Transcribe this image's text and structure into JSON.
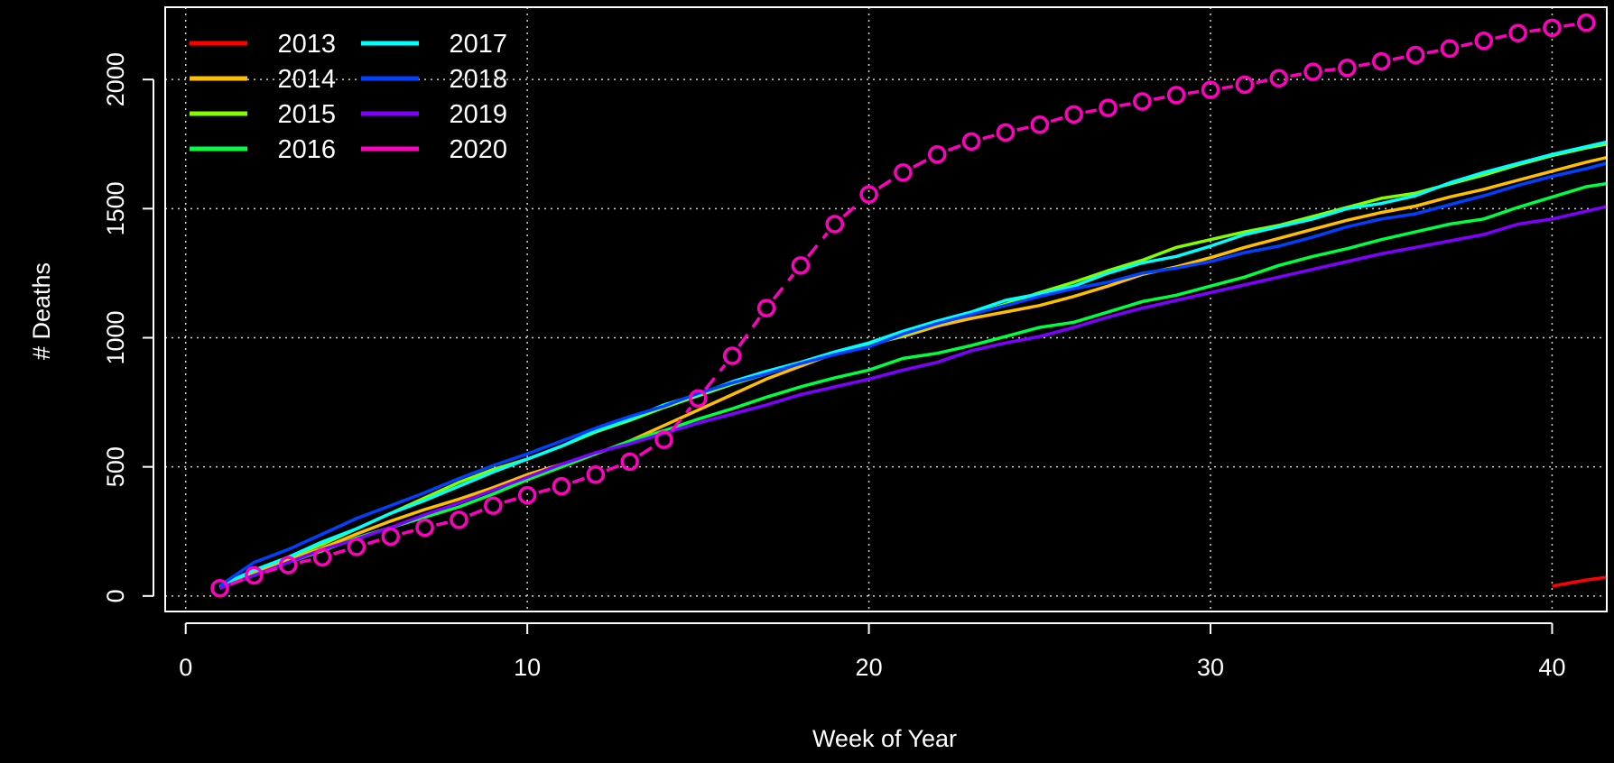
{
  "chart_data": {
    "type": "line",
    "xlabel": "Week of Year",
    "ylabel": "# Deaths",
    "xlim": [
      -0.6,
      41.6
    ],
    "ylim": [
      -60,
      2280
    ],
    "x_ticks": [
      0,
      10,
      20,
      30,
      40
    ],
    "y_ticks": [
      0,
      500,
      1000,
      1500,
      2000
    ],
    "grid": true,
    "legend_position": "top-left",
    "series": [
      {
        "name": "2013",
        "color": "#ff0000",
        "style": "line",
        "x": [
          40,
          41,
          42
        ],
        "y": [
          38,
          62,
          80
        ]
      },
      {
        "name": "2014",
        "color": "#ffbf00",
        "style": "line",
        "x": [
          1,
          2,
          3,
          4,
          5,
          6,
          7,
          8,
          9,
          10,
          11,
          12,
          13,
          14,
          15,
          16,
          17,
          18,
          19,
          20,
          21,
          22,
          23,
          24,
          25,
          26,
          27,
          28,
          29,
          30,
          31,
          32,
          33,
          34,
          35,
          36,
          37,
          38,
          39,
          40,
          41,
          42
        ],
        "y": [
          30,
          90,
          140,
          185,
          240,
          290,
          335,
          375,
          420,
          470,
          510,
          550,
          600,
          660,
          720,
          780,
          840,
          890,
          940,
          975,
          1005,
          1045,
          1075,
          1100,
          1125,
          1160,
          1200,
          1245,
          1275,
          1310,
          1350,
          1385,
          1420,
          1455,
          1485,
          1510,
          1545,
          1575,
          1610,
          1645,
          1680,
          1710
        ]
      },
      {
        "name": "2015",
        "color": "#80ff00",
        "style": "line",
        "x": [
          1,
          2,
          3,
          4,
          5,
          6,
          7,
          8,
          9,
          10,
          11,
          12,
          13,
          14,
          15,
          16,
          17,
          18,
          19,
          20,
          21,
          22,
          23,
          24,
          25,
          26,
          27,
          28,
          29,
          30,
          31,
          32,
          33,
          34,
          35,
          36,
          37,
          38,
          39,
          40,
          41,
          42
        ],
        "y": [
          35,
          100,
          150,
          200,
          260,
          320,
          380,
          440,
          490,
          530,
          580,
          635,
          680,
          730,
          775,
          820,
          860,
          900,
          940,
          970,
          1010,
          1055,
          1090,
          1130,
          1175,
          1215,
          1260,
          1300,
          1350,
          1380,
          1410,
          1435,
          1470,
          1505,
          1540,
          1560,
          1595,
          1630,
          1670,
          1705,
          1735,
          1760
        ]
      },
      {
        "name": "2016",
        "color": "#00ff40",
        "style": "line",
        "x": [
          1,
          2,
          3,
          4,
          5,
          6,
          7,
          8,
          9,
          10,
          11,
          12,
          13,
          14,
          15,
          16,
          17,
          18,
          19,
          20,
          21,
          22,
          23,
          24,
          25,
          26,
          27,
          28,
          29,
          30,
          31,
          32,
          33,
          34,
          35,
          36,
          37,
          38,
          39,
          40,
          41,
          42
        ],
        "y": [
          30,
          80,
          130,
          175,
          225,
          265,
          305,
          345,
          395,
          450,
          500,
          550,
          600,
          640,
          685,
          725,
          770,
          810,
          845,
          875,
          920,
          940,
          970,
          1005,
          1040,
          1060,
          1100,
          1140,
          1165,
          1200,
          1235,
          1280,
          1315,
          1345,
          1380,
          1410,
          1440,
          1460,
          1505,
          1545,
          1585,
          1605
        ]
      },
      {
        "name": "2017",
        "color": "#00ffff",
        "style": "line",
        "x": [
          1,
          2,
          3,
          4,
          5,
          6,
          7,
          8,
          9,
          10,
          11,
          12,
          13,
          14,
          15,
          16,
          17,
          18,
          19,
          20,
          21,
          22,
          23,
          24,
          25,
          26,
          27,
          28,
          29,
          30,
          31,
          32,
          33,
          34,
          35,
          36,
          37,
          38,
          39,
          40,
          41,
          42
        ],
        "y": [
          40,
          100,
          150,
          210,
          260,
          320,
          370,
          425,
          480,
          530,
          580,
          640,
          685,
          740,
          780,
          830,
          870,
          905,
          945,
          980,
          1025,
          1065,
          1100,
          1145,
          1170,
          1200,
          1250,
          1290,
          1315,
          1355,
          1400,
          1430,
          1460,
          1500,
          1520,
          1550,
          1600,
          1640,
          1675,
          1710,
          1740,
          1770
        ]
      },
      {
        "name": "2018",
        "color": "#0040ff",
        "style": "line",
        "x": [
          1,
          2,
          3,
          4,
          5,
          6,
          7,
          8,
          9,
          10,
          11,
          12,
          13,
          14,
          15,
          16,
          17,
          18,
          19,
          20,
          21,
          22,
          23,
          24,
          25,
          26,
          27,
          28,
          29,
          30,
          31,
          32,
          33,
          34,
          35,
          36,
          37,
          38,
          39,
          40,
          41,
          42
        ],
        "y": [
          40,
          130,
          180,
          240,
          300,
          350,
          400,
          455,
          505,
          550,
          600,
          650,
          695,
          735,
          785,
          825,
          860,
          900,
          935,
          965,
          1015,
          1055,
          1090,
          1125,
          1160,
          1190,
          1215,
          1250,
          1270,
          1295,
          1330,
          1355,
          1390,
          1430,
          1460,
          1480,
          1515,
          1550,
          1590,
          1625,
          1655,
          1690
        ]
      },
      {
        "name": "2019",
        "color": "#8000ff",
        "style": "line",
        "x": [
          1,
          2,
          3,
          4,
          5,
          6,
          7,
          8,
          9,
          10,
          11,
          12,
          13,
          14,
          15,
          16,
          17,
          18,
          19,
          20,
          21,
          22,
          23,
          24,
          25,
          26,
          27,
          28,
          29,
          30,
          31,
          32,
          33,
          34,
          35,
          36,
          37,
          38,
          39,
          40,
          41,
          42
        ],
        "y": [
          30,
          80,
          130,
          180,
          220,
          265,
          315,
          360,
          410,
          460,
          510,
          555,
          590,
          630,
          670,
          705,
          740,
          780,
          810,
          840,
          875,
          905,
          950,
          980,
          1005,
          1040,
          1080,
          1115,
          1145,
          1175,
          1205,
          1235,
          1265,
          1295,
          1325,
          1350,
          1375,
          1400,
          1440,
          1460,
          1490,
          1520
        ]
      },
      {
        "name": "2020",
        "color": "#ff00bf",
        "style": "dashed-circles",
        "x": [
          1,
          2,
          3,
          4,
          5,
          6,
          7,
          8,
          9,
          10,
          11,
          12,
          13,
          14,
          15,
          16,
          17,
          18,
          19,
          20,
          21,
          22,
          23,
          24,
          25,
          26,
          27,
          28,
          29,
          30,
          31,
          32,
          33,
          34,
          35,
          36,
          37,
          38,
          39,
          40,
          41
        ],
        "y": [
          30,
          80,
          120,
          150,
          190,
          230,
          265,
          295,
          350,
          390,
          425,
          470,
          520,
          605,
          765,
          930,
          1115,
          1280,
          1440,
          1555,
          1640,
          1710,
          1760,
          1795,
          1825,
          1865,
          1890,
          1915,
          1940,
          1960,
          1980,
          2005,
          2030,
          2045,
          2070,
          2095,
          2120,
          2150,
          2180,
          2200,
          2220
        ]
      }
    ]
  }
}
